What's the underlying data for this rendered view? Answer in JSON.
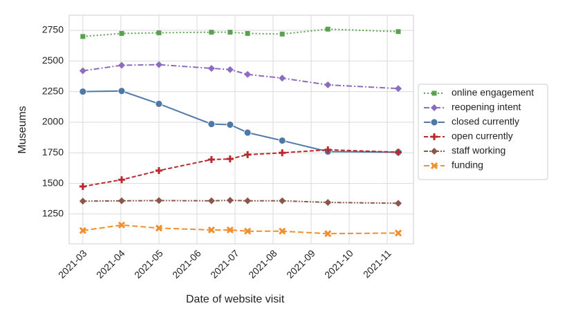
{
  "chart_data": {
    "type": "line",
    "xlabel": "Date of website visit",
    "ylabel": "Museums",
    "x": [
      3.0,
      4.02,
      5.0,
      6.38,
      6.87,
      7.33,
      8.24,
      9.44,
      11.29
    ],
    "xlim": [
      2.64,
      11.69
    ],
    "xticks": [
      {
        "value": 3,
        "label": "2021-03"
      },
      {
        "value": 4,
        "label": "2021-04"
      },
      {
        "value": 5,
        "label": "2021-05"
      },
      {
        "value": 6,
        "label": "2021-06"
      },
      {
        "value": 7,
        "label": "2021-07"
      },
      {
        "value": 8,
        "label": "2021-08"
      },
      {
        "value": 9,
        "label": "2021-09"
      },
      {
        "value": 10,
        "label": "2021-10"
      },
      {
        "value": 11,
        "label": "2021-11"
      }
    ],
    "ylim": [
      1007,
      2874
    ],
    "yticks": [
      1250,
      1500,
      1750,
      2000,
      2250,
      2500,
      2750
    ],
    "grid": true,
    "legend": "right",
    "series": [
      {
        "name": "online engagement",
        "color": "#59a14f",
        "marker": "square",
        "dash": "2,3",
        "values": [
          2700,
          2725,
          2730,
          2735,
          2735,
          2725,
          2720,
          2760,
          2740
        ]
      },
      {
        "name": "reopening intent",
        "color": "#8c6bc0",
        "marker": "diamond",
        "dash": "8,3,2,3",
        "values": [
          2420,
          2465,
          2470,
          2440,
          2430,
          2390,
          2360,
          2305,
          2275
        ]
      },
      {
        "name": "closed currently",
        "color": "#4e79a7",
        "marker": "circle",
        "dash": "none",
        "values": [
          2250,
          2255,
          2150,
          1985,
          1980,
          1915,
          1850,
          1760,
          1755
        ]
      },
      {
        "name": "open currently",
        "color": "#b8292f",
        "marker": "plus",
        "dash": "6,3",
        "values": [
          1475,
          1530,
          1605,
          1695,
          1700,
          1735,
          1750,
          1775,
          1755
        ]
      },
      {
        "name": "staff working",
        "color": "#8c564b",
        "marker": "diamond",
        "dash": "6,2,2,2,2,2",
        "values": [
          1355,
          1358,
          1360,
          1358,
          1362,
          1358,
          1358,
          1345,
          1338
        ]
      },
      {
        "name": "funding",
        "color": "#f28e2b",
        "marker": "x",
        "dash": "8,4",
        "values": [
          1115,
          1160,
          1135,
          1120,
          1120,
          1110,
          1110,
          1090,
          1095
        ]
      }
    ]
  }
}
